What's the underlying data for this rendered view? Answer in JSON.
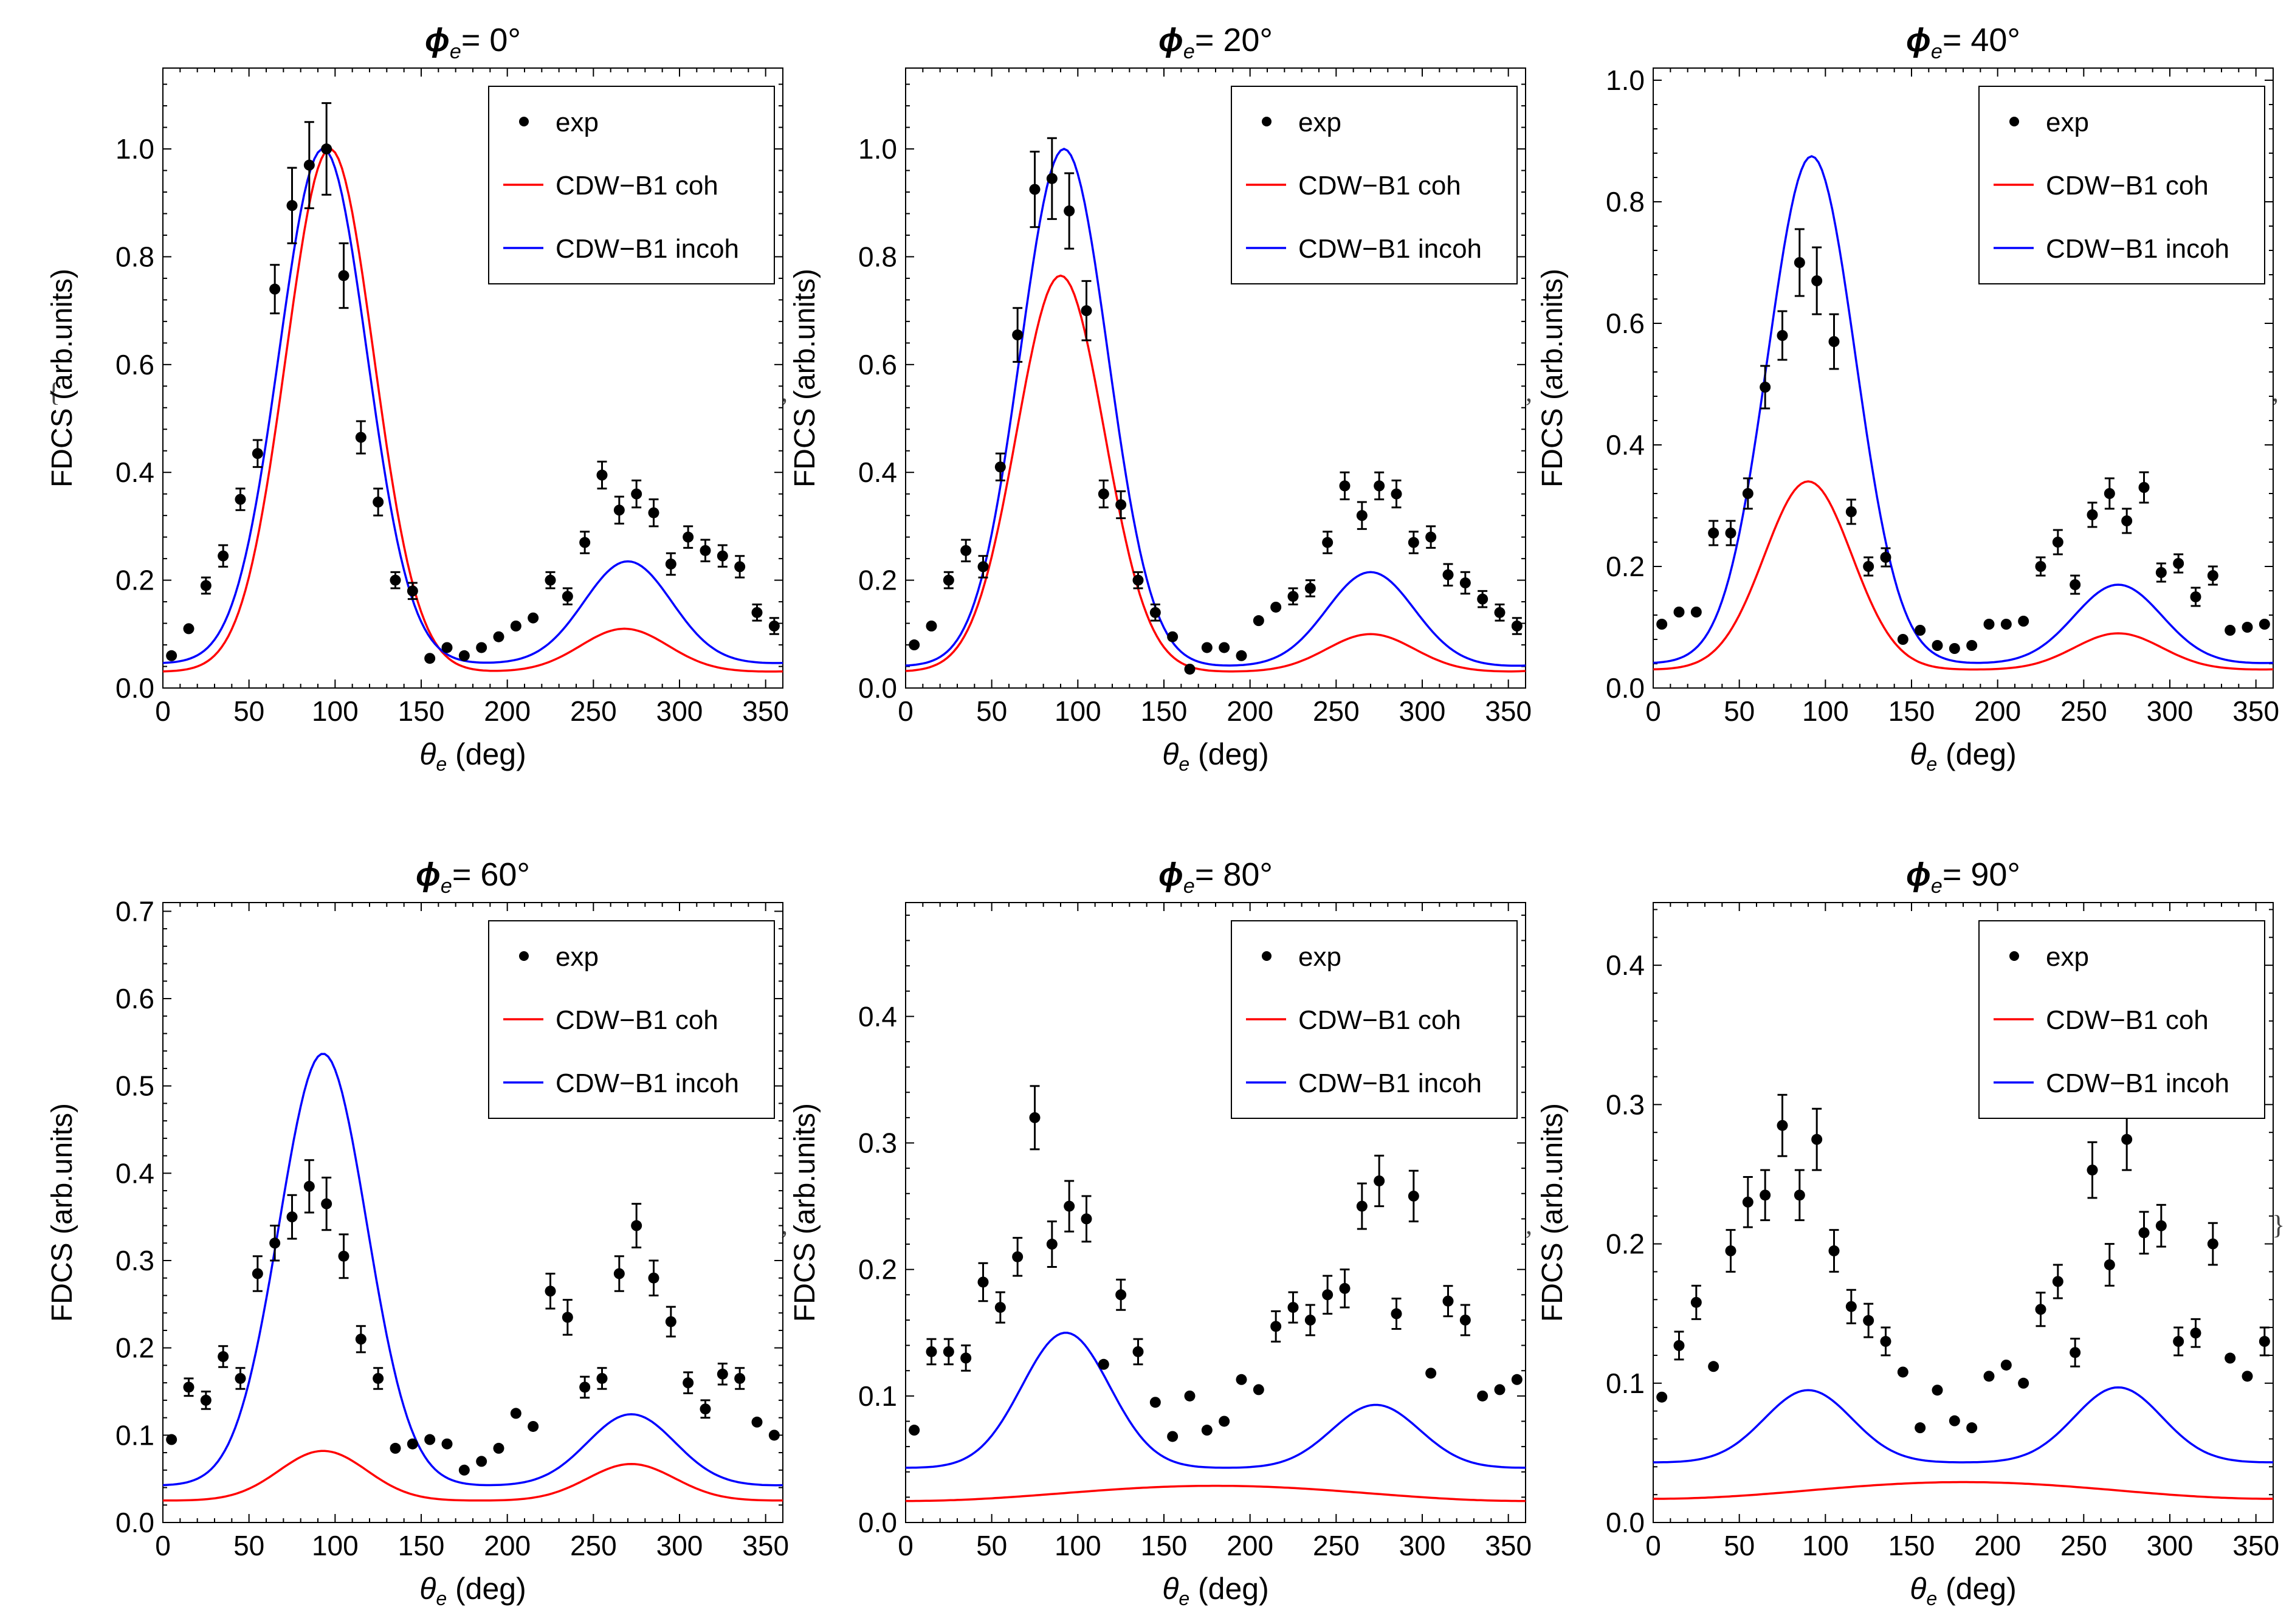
{
  "wrapper": {
    "open_brace": "{",
    "close_brace": "}",
    "comma": ","
  },
  "legend": {
    "exp": "exp",
    "coh": "CDW−B1 coh",
    "incoh": "CDW−B1 incoh"
  },
  "axes": {
    "xlabel_sym": "θ",
    "xlabel_sub": "e",
    "xlabel_unit": " (deg)",
    "ylabel": "FDCS (arb.units)"
  },
  "colors": {
    "coh": "#ff0000",
    "incoh": "#0000ff",
    "exp": "#000000"
  },
  "chart_data": [
    {
      "type": "scatter",
      "title_sym": "ϕ",
      "title_sub": "e",
      "title_value": "= 0°",
      "xlim": [
        0,
        360
      ],
      "ylim": [
        0,
        1.15
      ],
      "xticks": [
        0,
        50,
        100,
        150,
        200,
        250,
        300,
        350
      ],
      "yticks": [
        0.0,
        0.2,
        0.4,
        0.6,
        0.8,
        1.0
      ],
      "legend_position": "top-right",
      "exp": [
        [
          5,
          0.06,
          0
        ],
        [
          15,
          0.11,
          0
        ],
        [
          25,
          0.19,
          0.015
        ],
        [
          35,
          0.245,
          0.02
        ],
        [
          45,
          0.35,
          0.02
        ],
        [
          55,
          0.435,
          0.025
        ],
        [
          65,
          0.74,
          0.045
        ],
        [
          75,
          0.895,
          0.07
        ],
        [
          85,
          0.97,
          0.08
        ],
        [
          95,
          1.0,
          0.085
        ],
        [
          105,
          0.765,
          0.06
        ],
        [
          115,
          0.465,
          0.03
        ],
        [
          125,
          0.345,
          0.025
        ],
        [
          135,
          0.2,
          0.015
        ],
        [
          145,
          0.18,
          0.015
        ],
        [
          155,
          0.055,
          0
        ],
        [
          165,
          0.075,
          0
        ],
        [
          175,
          0.06,
          0
        ],
        [
          185,
          0.075,
          0
        ],
        [
          195,
          0.095,
          0
        ],
        [
          205,
          0.115,
          0
        ],
        [
          215,
          0.13,
          0
        ],
        [
          225,
          0.2,
          0.015
        ],
        [
          235,
          0.17,
          0.015
        ],
        [
          245,
          0.27,
          0.02
        ],
        [
          255,
          0.395,
          0.025
        ],
        [
          265,
          0.33,
          0.025
        ],
        [
          275,
          0.36,
          0.025
        ],
        [
          285,
          0.325,
          0.025
        ],
        [
          295,
          0.23,
          0.02
        ],
        [
          305,
          0.28,
          0.02
        ],
        [
          315,
          0.255,
          0.02
        ],
        [
          325,
          0.245,
          0.02
        ],
        [
          335,
          0.225,
          0.02
        ],
        [
          345,
          0.14,
          0.015
        ],
        [
          355,
          0.115,
          0.015
        ]
      ],
      "coh": {
        "a": 0.03,
        "b": 0.97,
        "c": 0.08,
        "p1": 97,
        "p2": 268
      },
      "incoh": {
        "a": 0.045,
        "b": 0.955,
        "c": 0.19,
        "p1": 93,
        "p2": 270
      }
    },
    {
      "type": "scatter",
      "title_sym": "ϕ",
      "title_sub": "e",
      "title_value": "= 20°",
      "xlim": [
        0,
        360
      ],
      "ylim": [
        0,
        1.15
      ],
      "xticks": [
        0,
        50,
        100,
        150,
        200,
        250,
        300,
        350
      ],
      "yticks": [
        0.0,
        0.2,
        0.4,
        0.6,
        0.8,
        1.0
      ],
      "legend_position": "top-right",
      "exp": [
        [
          5,
          0.08,
          0
        ],
        [
          15,
          0.115,
          0
        ],
        [
          25,
          0.2,
          0.015
        ],
        [
          35,
          0.255,
          0.02
        ],
        [
          45,
          0.225,
          0.02
        ],
        [
          55,
          0.41,
          0.025
        ],
        [
          65,
          0.655,
          0.05
        ],
        [
          75,
          0.925,
          0.07
        ],
        [
          85,
          0.945,
          0.075
        ],
        [
          95,
          0.885,
          0.07
        ],
        [
          105,
          0.7,
          0.055
        ],
        [
          115,
          0.36,
          0.025
        ],
        [
          125,
          0.34,
          0.025
        ],
        [
          135,
          0.2,
          0.015
        ],
        [
          145,
          0.14,
          0.015
        ],
        [
          155,
          0.095,
          0
        ],
        [
          165,
          0.035,
          0
        ],
        [
          175,
          0.075,
          0
        ],
        [
          185,
          0.075,
          0
        ],
        [
          195,
          0.06,
          0
        ],
        [
          205,
          0.125,
          0
        ],
        [
          215,
          0.15,
          0
        ],
        [
          225,
          0.17,
          0.015
        ],
        [
          235,
          0.185,
          0.015
        ],
        [
          245,
          0.27,
          0.02
        ],
        [
          255,
          0.375,
          0.025
        ],
        [
          265,
          0.32,
          0.025
        ],
        [
          275,
          0.375,
          0.025
        ],
        [
          285,
          0.36,
          0.025
        ],
        [
          295,
          0.27,
          0.02
        ],
        [
          305,
          0.28,
          0.02
        ],
        [
          315,
          0.21,
          0.02
        ],
        [
          325,
          0.195,
          0.02
        ],
        [
          335,
          0.165,
          0.015
        ],
        [
          345,
          0.14,
          0.015
        ],
        [
          355,
          0.115,
          0.015
        ]
      ],
      "coh": {
        "a": 0.03,
        "b": 0.735,
        "c": 0.07,
        "p1": 90,
        "p2": 270
      },
      "incoh": {
        "a": 0.04,
        "b": 0.96,
        "c": 0.175,
        "p1": 92,
        "p2": 270
      }
    },
    {
      "type": "scatter",
      "title_sym": "ϕ",
      "title_sub": "e",
      "title_value": "= 40°",
      "xlim": [
        0,
        360
      ],
      "ylim": [
        0,
        1.02
      ],
      "xticks": [
        0,
        50,
        100,
        150,
        200,
        250,
        300,
        350
      ],
      "yticks": [
        0.0,
        0.2,
        0.4,
        0.6,
        0.8,
        1.0
      ],
      "legend_position": "top-right",
      "exp": [
        [
          5,
          0.105,
          0
        ],
        [
          15,
          0.125,
          0
        ],
        [
          25,
          0.125,
          0
        ],
        [
          35,
          0.255,
          0.02
        ],
        [
          45,
          0.255,
          0.02
        ],
        [
          55,
          0.32,
          0.025
        ],
        [
          65,
          0.495,
          0.035
        ],
        [
          75,
          0.58,
          0.04
        ],
        [
          85,
          0.7,
          0.055
        ],
        [
          95,
          0.67,
          0.055
        ],
        [
          105,
          0.57,
          0.045
        ],
        [
          115,
          0.29,
          0.02
        ],
        [
          125,
          0.2,
          0.015
        ],
        [
          135,
          0.215,
          0.015
        ],
        [
          145,
          0.08,
          0
        ],
        [
          155,
          0.095,
          0
        ],
        [
          165,
          0.07,
          0
        ],
        [
          175,
          0.065,
          0
        ],
        [
          185,
          0.07,
          0
        ],
        [
          195,
          0.105,
          0
        ],
        [
          205,
          0.105,
          0
        ],
        [
          215,
          0.11,
          0
        ],
        [
          225,
          0.2,
          0.015
        ],
        [
          235,
          0.24,
          0.02
        ],
        [
          245,
          0.17,
          0.015
        ],
        [
          255,
          0.285,
          0.02
        ],
        [
          265,
          0.32,
          0.025
        ],
        [
          275,
          0.275,
          0.02
        ],
        [
          285,
          0.33,
          0.025
        ],
        [
          295,
          0.19,
          0.015
        ],
        [
          305,
          0.205,
          0.015
        ],
        [
          315,
          0.15,
          0.015
        ],
        [
          325,
          0.185,
          0.015
        ],
        [
          335,
          0.095,
          0
        ],
        [
          345,
          0.1,
          0
        ],
        [
          355,
          0.105,
          0
        ]
      ],
      "coh": {
        "a": 0.03,
        "b": 0.31,
        "c": 0.06,
        "p1": 90,
        "p2": 270
      },
      "incoh": {
        "a": 0.04,
        "b": 0.835,
        "c": 0.13,
        "p1": 92,
        "p2": 270
      }
    },
    {
      "type": "scatter",
      "title_sym": "ϕ",
      "title_sub": "e",
      "title_value": "= 60°",
      "xlim": [
        0,
        360
      ],
      "ylim": [
        0,
        0.71
      ],
      "xticks": [
        0,
        50,
        100,
        150,
        200,
        250,
        300,
        350
      ],
      "yticks": [
        0.0,
        0.1,
        0.2,
        0.3,
        0.4,
        0.5,
        0.6,
        0.7
      ],
      "legend_position": "top-right",
      "exp": [
        [
          5,
          0.095,
          0
        ],
        [
          15,
          0.155,
          0.01
        ],
        [
          25,
          0.14,
          0.01
        ],
        [
          35,
          0.19,
          0.012
        ],
        [
          45,
          0.165,
          0.012
        ],
        [
          55,
          0.285,
          0.02
        ],
        [
          65,
          0.32,
          0.02
        ],
        [
          75,
          0.35,
          0.025
        ],
        [
          85,
          0.385,
          0.03
        ],
        [
          95,
          0.365,
          0.03
        ],
        [
          105,
          0.305,
          0.025
        ],
        [
          115,
          0.21,
          0.015
        ],
        [
          125,
          0.165,
          0.012
        ],
        [
          135,
          0.085,
          0
        ],
        [
          145,
          0.09,
          0
        ],
        [
          155,
          0.095,
          0
        ],
        [
          165,
          0.09,
          0
        ],
        [
          175,
          0.06,
          0
        ],
        [
          185,
          0.07,
          0
        ],
        [
          195,
          0.085,
          0
        ],
        [
          205,
          0.125,
          0
        ],
        [
          215,
          0.11,
          0
        ],
        [
          225,
          0.265,
          0.02
        ],
        [
          235,
          0.235,
          0.02
        ],
        [
          245,
          0.155,
          0.012
        ],
        [
          255,
          0.165,
          0.012
        ],
        [
          265,
          0.285,
          0.02
        ],
        [
          275,
          0.34,
          0.025
        ],
        [
          285,
          0.28,
          0.02
        ],
        [
          295,
          0.23,
          0.017
        ],
        [
          305,
          0.16,
          0.012
        ],
        [
          315,
          0.13,
          0.01
        ],
        [
          325,
          0.17,
          0.012
        ],
        [
          335,
          0.165,
          0.012
        ],
        [
          345,
          0.115,
          0
        ],
        [
          355,
          0.1,
          0
        ]
      ],
      "coh": {
        "a": 0.025,
        "b": 0.057,
        "c": 0.042,
        "p1": 93,
        "p2": 272
      },
      "incoh": {
        "a": 0.042,
        "b": 0.495,
        "c": 0.082,
        "p1": 93,
        "p2": 272
      }
    },
    {
      "type": "scatter",
      "title_sym": "ϕ",
      "title_sub": "e",
      "title_value": "= 80°",
      "xlim": [
        0,
        360
      ],
      "ylim": [
        0,
        0.49
      ],
      "xticks": [
        0,
        50,
        100,
        150,
        200,
        250,
        300,
        350
      ],
      "yticks": [
        0.0,
        0.1,
        0.2,
        0.3,
        0.4
      ],
      "legend_position": "top-right",
      "exp": [
        [
          5,
          0.073,
          0
        ],
        [
          15,
          0.135,
          0.01
        ],
        [
          25,
          0.135,
          0.01
        ],
        [
          35,
          0.13,
          0.01
        ],
        [
          45,
          0.19,
          0.015
        ],
        [
          55,
          0.17,
          0.012
        ],
        [
          65,
          0.21,
          0.015
        ],
        [
          75,
          0.32,
          0.025
        ],
        [
          85,
          0.22,
          0.018
        ],
        [
          95,
          0.25,
          0.02
        ],
        [
          105,
          0.24,
          0.018
        ],
        [
          115,
          0.125,
          0
        ],
        [
          125,
          0.18,
          0.012
        ],
        [
          135,
          0.135,
          0.01
        ],
        [
          145,
          0.095,
          0
        ],
        [
          155,
          0.068,
          0
        ],
        [
          165,
          0.1,
          0
        ],
        [
          175,
          0.073,
          0
        ],
        [
          185,
          0.08,
          0
        ],
        [
          195,
          0.113,
          0
        ],
        [
          205,
          0.105,
          0
        ],
        [
          215,
          0.155,
          0.012
        ],
        [
          225,
          0.17,
          0.012
        ],
        [
          235,
          0.16,
          0.012
        ],
        [
          245,
          0.18,
          0.015
        ],
        [
          255,
          0.185,
          0.015
        ],
        [
          265,
          0.25,
          0.018
        ],
        [
          275,
          0.27,
          0.02
        ],
        [
          285,
          0.165,
          0.012
        ],
        [
          295,
          0.258,
          0.02
        ],
        [
          305,
          0.118,
          0
        ],
        [
          315,
          0.175,
          0.012
        ],
        [
          325,
          0.16,
          0.012
        ],
        [
          335,
          0.1,
          0
        ],
        [
          345,
          0.105,
          0
        ],
        [
          355,
          0.113,
          0
        ]
      ],
      "coh": {
        "a": 0.027,
        "b": 0.0,
        "c": 0.008,
        "p1": 90,
        "p2": 270,
        "mode": "flat"
      },
      "incoh": {
        "a": 0.043,
        "b": 0.107,
        "c": 0.05,
        "p1": 93,
        "p2": 273
      }
    },
    {
      "type": "scatter",
      "title_sym": "ϕ",
      "title_sub": "e",
      "title_value": "= 90°",
      "xlim": [
        0,
        360
      ],
      "ylim": [
        0,
        0.445
      ],
      "xticks": [
        0,
        50,
        100,
        150,
        200,
        250,
        300,
        350
      ],
      "yticks": [
        0.0,
        0.1,
        0.2,
        0.3,
        0.4
      ],
      "legend_position": "top-right",
      "exp": [
        [
          5,
          0.09,
          0
        ],
        [
          15,
          0.127,
          0.01
        ],
        [
          25,
          0.158,
          0.012
        ],
        [
          35,
          0.112,
          0
        ],
        [
          45,
          0.195,
          0.015
        ],
        [
          55,
          0.23,
          0.018
        ],
        [
          65,
          0.235,
          0.018
        ],
        [
          75,
          0.285,
          0.022
        ],
        [
          85,
          0.235,
          0.018
        ],
        [
          95,
          0.275,
          0.022
        ],
        [
          105,
          0.195,
          0.015
        ],
        [
          115,
          0.155,
          0.012
        ],
        [
          125,
          0.145,
          0.012
        ],
        [
          135,
          0.13,
          0.01
        ],
        [
          145,
          0.108,
          0
        ],
        [
          155,
          0.068,
          0
        ],
        [
          165,
          0.095,
          0
        ],
        [
          175,
          0.073,
          0
        ],
        [
          185,
          0.068,
          0
        ],
        [
          195,
          0.105,
          0
        ],
        [
          205,
          0.113,
          0
        ],
        [
          215,
          0.1,
          0
        ],
        [
          225,
          0.153,
          0.012
        ],
        [
          235,
          0.173,
          0.012
        ],
        [
          245,
          0.122,
          0.01
        ],
        [
          255,
          0.253,
          0.02
        ],
        [
          265,
          0.185,
          0.015
        ],
        [
          275,
          0.275,
          0.022
        ],
        [
          285,
          0.208,
          0.015
        ],
        [
          295,
          0.213,
          0.015
        ],
        [
          305,
          0.13,
          0.01
        ],
        [
          315,
          0.136,
          0.01
        ],
        [
          325,
          0.2,
          0.015
        ],
        [
          335,
          0.118,
          0
        ],
        [
          345,
          0.105,
          0
        ],
        [
          355,
          0.13,
          0.01
        ]
      ],
      "coh": {
        "a": 0.027,
        "b": 0.0,
        "c": 0.006,
        "p1": 90,
        "p2": 270,
        "mode": "flat"
      },
      "incoh": {
        "a": 0.043,
        "b": 0.052,
        "c": 0.054,
        "p1": 90,
        "p2": 270
      }
    }
  ]
}
